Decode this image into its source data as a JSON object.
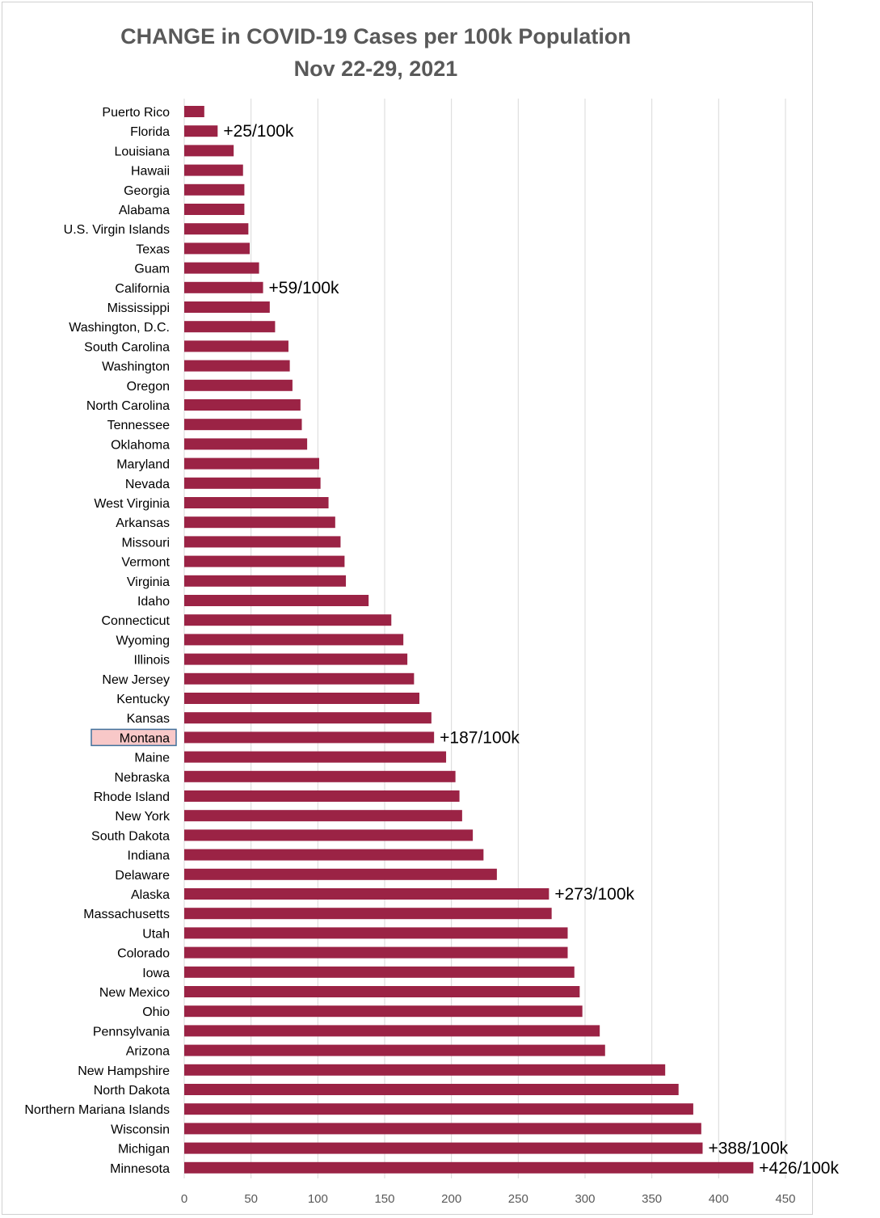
{
  "chart_data": {
    "type": "bar",
    "orientation": "horizontal",
    "title": "CHANGE in COVID-19 Cases per 100k Population",
    "subtitle": "Nov 22-29, 2021",
    "xlim": [
      0,
      450
    ],
    "xticks": [
      0,
      50,
      100,
      150,
      200,
      250,
      300,
      350,
      400,
      450
    ],
    "grid": true,
    "bar_color": "#9B2345",
    "highlight": {
      "category": "Montana",
      "fill": "#F8C8C8",
      "border": "#41719C"
    },
    "categories": [
      "Puerto Rico",
      "Florida",
      "Louisiana",
      "Hawaii",
      "Georgia",
      "Alabama",
      "U.S. Virgin Islands",
      "Texas",
      "Guam",
      "California",
      "Mississippi",
      "Washington, D.C.",
      "South Carolina",
      "Washington",
      "Oregon",
      "North Carolina",
      "Tennessee",
      "Oklahoma",
      "Maryland",
      "Nevada",
      "West Virginia",
      "Arkansas",
      "Missouri",
      "Vermont",
      "Virginia",
      "Idaho",
      "Connecticut",
      "Wyoming",
      "Illinois",
      "New Jersey",
      "Kentucky",
      "Kansas",
      "Montana",
      "Maine",
      "Nebraska",
      "Rhode Island",
      "New York",
      "South Dakota",
      "Indiana",
      "Delaware",
      "Alaska",
      "Massachusetts",
      "Utah",
      "Colorado",
      "Iowa",
      "New Mexico",
      "Ohio",
      "Pennsylvania",
      "Arizona",
      "New Hampshire",
      "North Dakota",
      "Northern Mariana Islands",
      "Wisconsin",
      "Michigan",
      "Minnesota"
    ],
    "values": [
      15,
      25,
      37,
      44,
      45,
      45,
      48,
      49,
      56,
      59,
      64,
      68,
      78,
      79,
      81,
      87,
      88,
      92,
      101,
      102,
      108,
      113,
      117,
      120,
      121,
      138,
      155,
      164,
      167,
      172,
      176,
      185,
      187,
      196,
      203,
      206,
      208,
      216,
      224,
      234,
      273,
      275,
      287,
      287,
      292,
      296,
      298,
      311,
      315,
      360,
      370,
      381,
      387,
      388,
      426
    ],
    "annotations": [
      {
        "category": "Florida",
        "label": "+25/100k"
      },
      {
        "category": "California",
        "label": "+59/100k"
      },
      {
        "category": "Montana",
        "label": "+187/100k"
      },
      {
        "category": "Alaska",
        "label": "+273/100k"
      },
      {
        "category": "Michigan",
        "label": "+388/100k"
      },
      {
        "category": "Minnesota",
        "label": "+426/100k"
      }
    ]
  }
}
